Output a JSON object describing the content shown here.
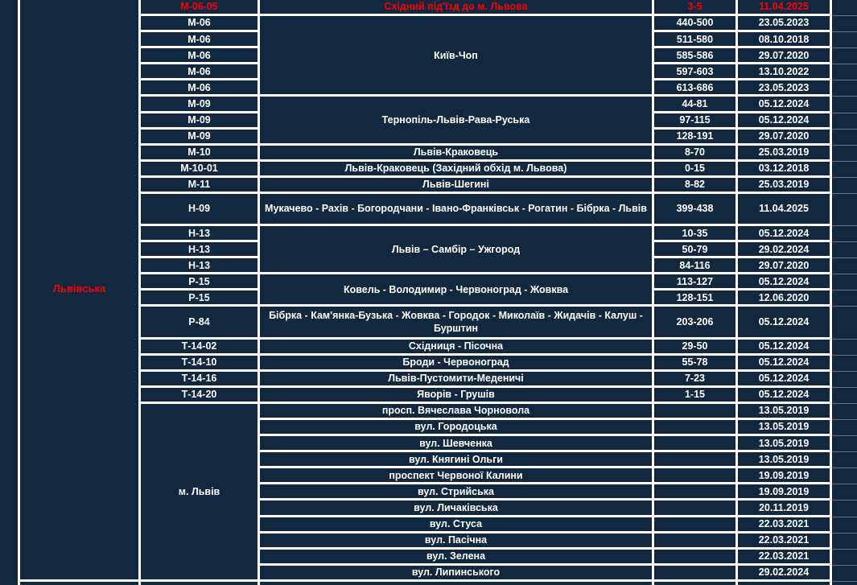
{
  "colors": {
    "cell_background": "#112940",
    "grid_border": "#ffffff",
    "text": "#ffffff",
    "highlight_text": "#ff0000",
    "corner_marker": "#00b050"
  },
  "table": {
    "region": "Львівська",
    "city_group_label": "м. Львів",
    "rows": [
      {
        "code": "М-06-05",
        "route": "Східний під'їзд до м. Львова",
        "km": "3-5",
        "date": "11.04.2025",
        "red": true
      },
      {
        "code": "М-06",
        "route": "Київ-Чоп",
        "route_span": 5,
        "km": "440-500",
        "date": "23.05.2023"
      },
      {
        "code": "М-06",
        "km": "511-580",
        "date": "08.10.2018"
      },
      {
        "code": "М-06",
        "km": "585-586",
        "date": "29.07.2020"
      },
      {
        "code": "М-06",
        "km": "597-603",
        "date": "13.10.2022"
      },
      {
        "code": "М-06",
        "km": "613-686",
        "date": "23.05.2023"
      },
      {
        "code": "М-09",
        "route": "Тернопіль-Львів-Рава-Руська",
        "route_span": 3,
        "km": "44-81",
        "date": "05.12.2024"
      },
      {
        "code": "М-09",
        "km": "97-115",
        "date": "05.12.2024"
      },
      {
        "code": "М-09",
        "km": "128-191",
        "date": "29.07.2020"
      },
      {
        "code": "М-10",
        "route": "Львів-Краковець",
        "km": "8-70",
        "date": "25.03.2019",
        "km_marker": true
      },
      {
        "code": "М-10-01",
        "route": "Львів-Краковець (Західний обхід м. Львова)",
        "km": "0-15",
        "date": "03.12.2018"
      },
      {
        "code": "М-11",
        "route": "Львів-Шегині",
        "km": "8-82",
        "date": "25.03.2019",
        "km_marker": true
      },
      {
        "code": "Н-09",
        "route": "Мукачево - Рахів - Богородчани - Івано-Франківськ - Рогатин - Бібрка - Львів",
        "km": "399-438",
        "date": "11.04.2025",
        "tall": true
      },
      {
        "code": "Н-13",
        "route": "Львів – Самбір – Ужгород",
        "route_span": 3,
        "km": "10-35",
        "date": "05.12.2024",
        "km_marker": true
      },
      {
        "code": "Н-13",
        "km": "50-79",
        "date": "29.02.2024"
      },
      {
        "code": "Н-13",
        "km": "84-116",
        "date": "29.07.2020",
        "code_marker": true
      },
      {
        "code": "Р-15",
        "route": "Ковель - Володимир - Червоноград - Жовква",
        "route_span": 2,
        "km": "113-127",
        "date": "05.12.2024"
      },
      {
        "code": "Р-15",
        "km": "128-151",
        "date": "12.06.2020"
      },
      {
        "code": "Р-84",
        "route": "Бібрка - Кам'янка-Бузька - Жовква - Городок - Миколаїв - Жидачів - Калуш - Бурштин",
        "km": "203-206",
        "date": "05.12.2024",
        "tall": true
      },
      {
        "code": "Т-14-02",
        "route": "Східниця - Пісочна",
        "km": "29-50",
        "date": "05.12.2024",
        "code_marker": true
      },
      {
        "code": "Т-14-10",
        "route": "Броди - Червоноград",
        "km": "55-78",
        "date": "05.12.2024"
      },
      {
        "code": "Т-14-16",
        "route": "Львів-Пустомити-Меденичі",
        "km": "7-23",
        "date": "05.12.2024",
        "km_marker": true
      },
      {
        "code": "Т-14-20",
        "route": "Яворів - Грушів",
        "km": "1-15",
        "date": "05.12.2024",
        "km_marker": true,
        "code_marker": true
      },
      {
        "code": "м. Львів",
        "code_span": 11,
        "route": "просп. Вячеслава Чорновола",
        "km": "",
        "date": "13.05.2019"
      },
      {
        "route": "вул. Городоцька",
        "km": "",
        "date": "13.05.2019"
      },
      {
        "route": "вул. Шевченка",
        "km": "",
        "date": "13.05.2019"
      },
      {
        "route": "вул. Княгині Ольги",
        "km": "",
        "date": "13.05.2019"
      },
      {
        "route": "проспект Червоної Калини",
        "km": "",
        "date": "19.09.2019"
      },
      {
        "route": "вул. Стрийська",
        "km": "",
        "date": "19.09.2019"
      },
      {
        "route": "вул. Личаківська",
        "km": "",
        "date": "20.11.2019"
      },
      {
        "route": "вул. Стуса",
        "km": "",
        "date": "22.03.2021"
      },
      {
        "route": "вул. Пасічна",
        "km": "",
        "date": "22.03.2021"
      },
      {
        "route": "вул. Зелена",
        "km": "",
        "date": "22.03.2021"
      },
      {
        "route": "вул. Липинського",
        "km": "",
        "date": "29.02.2024"
      },
      {
        "partial": true,
        "code": "",
        "route": "",
        "km": "",
        "date": ""
      }
    ]
  }
}
